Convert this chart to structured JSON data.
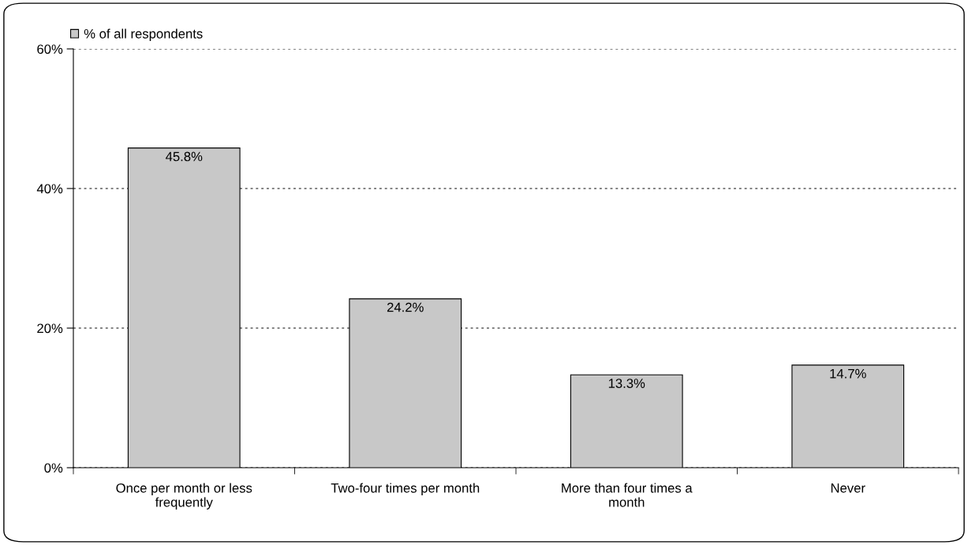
{
  "chart_data": {
    "type": "bar",
    "categories": [
      "Once per month or less frequently",
      "Two-four times per month",
      "More than four times a month",
      "Never"
    ],
    "series": [
      {
        "name": "% of all respondents",
        "color": "#c8c8c8",
        "values": [
          45.8,
          24.2,
          13.3,
          14.7
        ]
      }
    ],
    "value_labels": [
      "45.8%",
      "24.2%",
      "13.3%",
      "14.7%"
    ],
    "ylim": [
      0,
      60
    ],
    "yticks": [
      {
        "value": 0,
        "label": "0%"
      },
      {
        "value": 20,
        "label": "20%"
      },
      {
        "value": 40,
        "label": "40%"
      },
      {
        "value": 60,
        "label": "60%"
      }
    ],
    "grid": "y",
    "legend": "top left"
  }
}
